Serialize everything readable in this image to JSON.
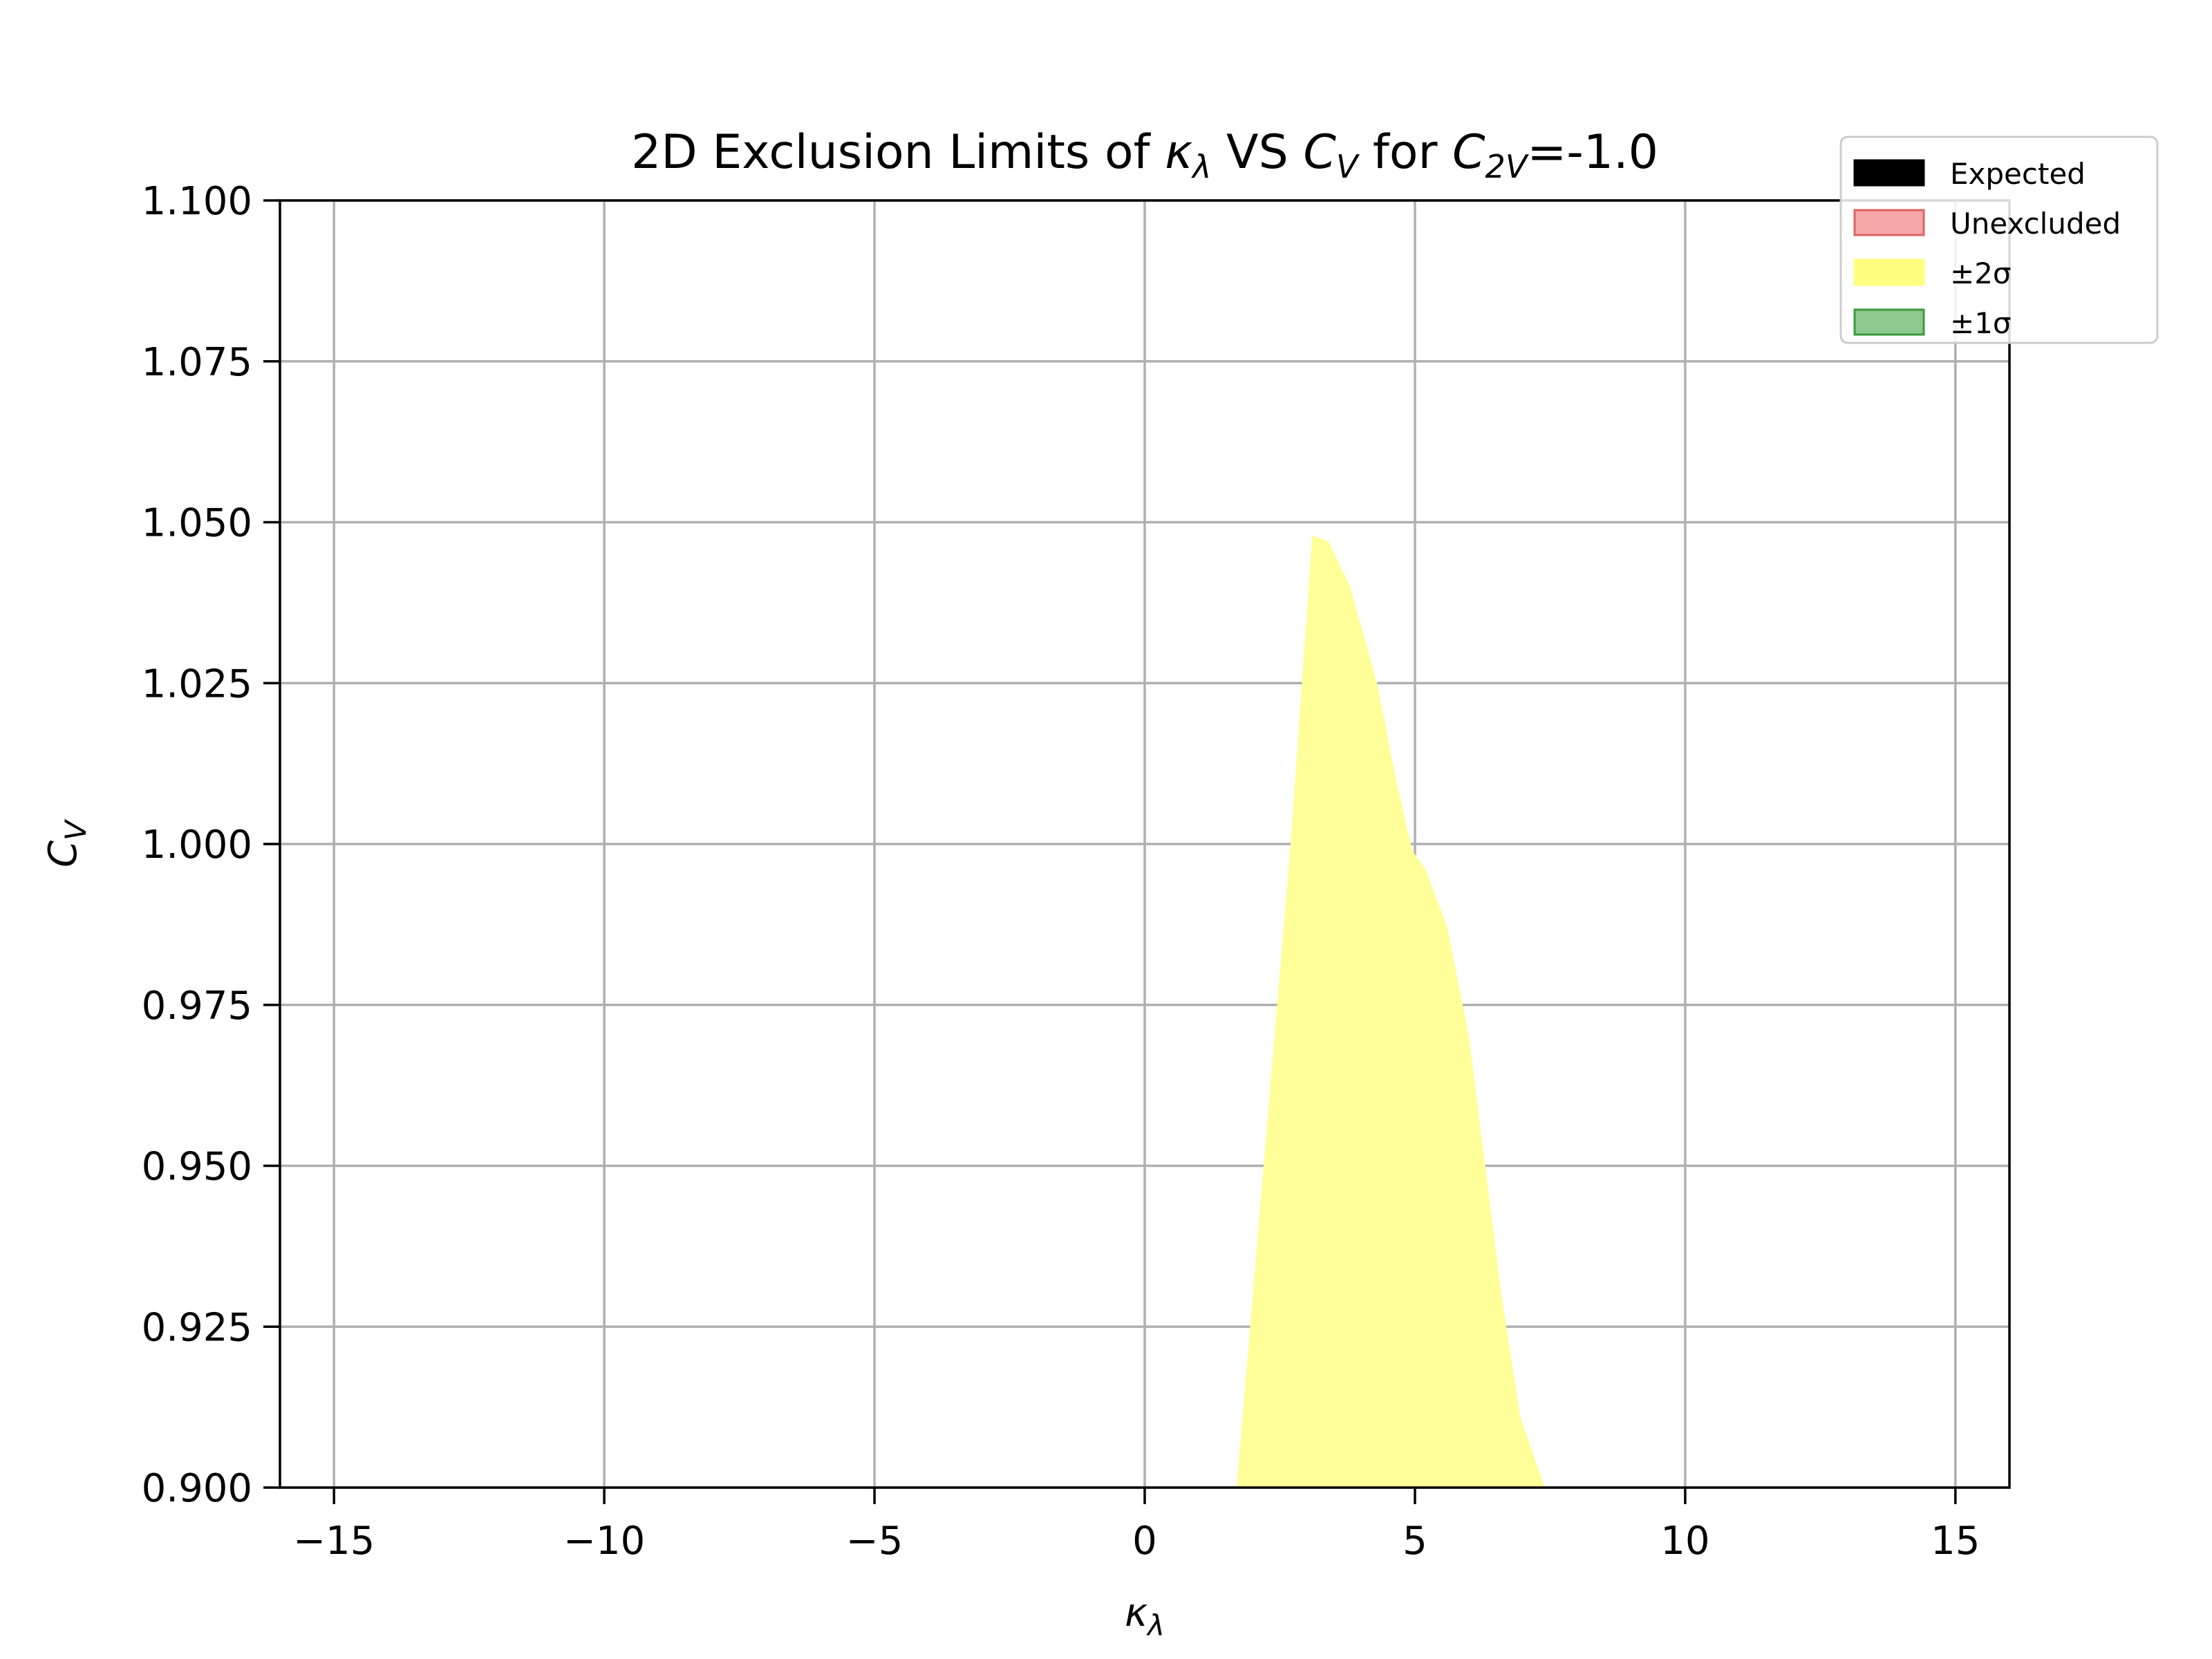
{
  "chart_data": {
    "type": "area",
    "title": {
      "prefix": "2D Exclusion Limits of ",
      "kappa": "κ",
      "kappa_sub": "λ",
      "mid": " VS ",
      "cv": "C",
      "cv_sub": "V",
      "for": " for ",
      "c2v": "C",
      "c2v_sub": "2V",
      "suffix": "=-1.0"
    },
    "xlabel": {
      "main": "κ",
      "sub": "λ"
    },
    "ylabel": {
      "main": "C",
      "sub": "V"
    },
    "xlim": [
      -16,
      16
    ],
    "ylim": [
      0.9,
      1.1
    ],
    "x_ticks": [
      -15,
      -10,
      -5,
      0,
      5,
      10,
      15
    ],
    "x_tick_labels": [
      "−15",
      "−10",
      "−5",
      "0",
      "5",
      "10",
      "15"
    ],
    "y_ticks": [
      0.9,
      0.925,
      0.95,
      0.975,
      1.0,
      1.025,
      1.05,
      1.075,
      1.1
    ],
    "y_tick_labels": [
      "0.900",
      "0.925",
      "0.950",
      "0.975",
      "1.000",
      "1.025",
      "1.050",
      "1.075",
      "1.100"
    ],
    "grid": true,
    "legend": {
      "placement": "top-right",
      "entries": [
        {
          "label": "Expected",
          "color": "#000000",
          "edge": "#000000"
        },
        {
          "label": "Unexcluded",
          "color": "#f7a8a8",
          "edge": "#e06060"
        },
        {
          "label": "±2σ",
          "color": "#ffff80",
          "edge": "#ffff80"
        },
        {
          "label": "±1σ",
          "color": "#8fc88f",
          "edge": "#3a9a3a"
        }
      ]
    },
    "series": [
      {
        "fill": "#ffff99",
        "boundary": [
          [
            1.7,
            0.9
          ],
          [
            2.2,
            0.95
          ],
          [
            2.7,
            1.0
          ],
          [
            3.1,
            1.048
          ],
          [
            3.4,
            1.047
          ],
          [
            3.8,
            1.04
          ],
          [
            4.3,
            1.025
          ],
          [
            4.65,
            1.01
          ],
          [
            4.95,
            0.999
          ],
          [
            5.2,
            0.996
          ],
          [
            5.6,
            0.987
          ],
          [
            6.0,
            0.97
          ],
          [
            6.3,
            0.95
          ],
          [
            6.6,
            0.93
          ],
          [
            6.95,
            0.911
          ],
          [
            7.4,
            0.9
          ]
        ]
      }
    ]
  }
}
